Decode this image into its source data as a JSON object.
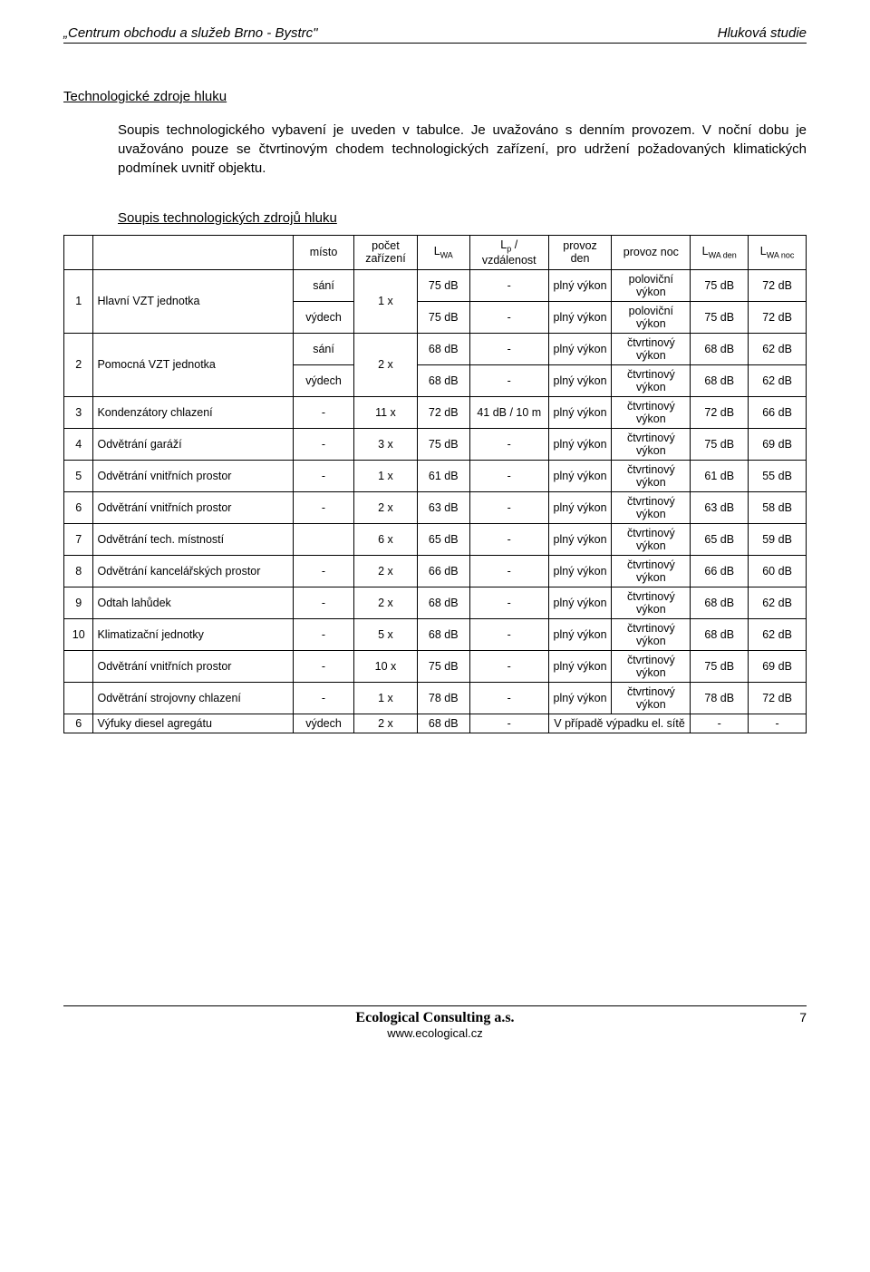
{
  "header": {
    "left": "„Centrum obchodu a služeb Brno - Bystrc\"",
    "right": "Hluková studie"
  },
  "section_title": "Technologické zdroje hluku",
  "para1": "Soupis technologického vybavení je uveden v tabulce. Je uvažováno s denním provozem. V noční dobu je uvažováno pouze se čtvrtinovým chodem technologických zařízení, pro udržení požadovaných klimatických podmínek uvnitř objektu.",
  "sub_title": "Soupis technologických zdrojů hluku",
  "table": {
    "head": {
      "misto": "místo",
      "pocet": "počet zařízení",
      "lwa": "L",
      "lwa_sub": "WA",
      "lp": "L",
      "lp_sub": "p",
      "lp_rest": " / vzdálenost",
      "provoz_den": "provoz den",
      "provoz_noc": "provoz noc",
      "lwa_den": "L",
      "lwa_den_sub": "WA den",
      "lwa_noc": "L",
      "lwa_noc_sub": "WA noc"
    },
    "groups": [
      {
        "n": "1",
        "name": "Hlavní VZT jednotka",
        "cnt": "1 x",
        "rows": [
          {
            "misto": "sání",
            "lwa": "75 dB",
            "lp": "-",
            "pd": "plný výkon",
            "pn": "poloviční výkon",
            "lwd": "75 dB",
            "lwn": "72 dB"
          },
          {
            "misto": "výdech",
            "lwa": "75 dB",
            "lp": "-",
            "pd": "plný výkon",
            "pn": "poloviční výkon",
            "lwd": "75 dB",
            "lwn": "72 dB"
          }
        ]
      },
      {
        "n": "2",
        "name": "Pomocná VZT jednotka",
        "cnt": "2 x",
        "rows": [
          {
            "misto": "sání",
            "lwa": "68 dB",
            "lp": "-",
            "pd": "plný výkon",
            "pn": "čtvrtinový výkon",
            "lwd": "68 dB",
            "lwn": "62 dB"
          },
          {
            "misto": "výdech",
            "lwa": "68 dB",
            "lp": "-",
            "pd": "plný výkon",
            "pn": "čtvrtinový výkon",
            "lwd": "68 dB",
            "lwn": "62 dB"
          }
        ]
      },
      {
        "n": "3",
        "name": "Kondenzátory chlazení",
        "cnt": "11 x",
        "rows": [
          {
            "misto": "-",
            "lwa": "72 dB",
            "lp": "41 dB / 10 m",
            "pd": "plný výkon",
            "pn": "čtvrtinový výkon",
            "lwd": "72 dB",
            "lwn": "66 dB"
          }
        ]
      },
      {
        "n": "4",
        "name": "Odvětrání garáží",
        "cnt": "3 x",
        "rows": [
          {
            "misto": "-",
            "lwa": "75 dB",
            "lp": "-",
            "pd": "plný výkon",
            "pn": "čtvrtinový výkon",
            "lwd": "75 dB",
            "lwn": "69 dB"
          }
        ]
      },
      {
        "n": "5",
        "name": "Odvětrání vnitřních prostor",
        "cnt": "1 x",
        "rows": [
          {
            "misto": "-",
            "lwa": "61 dB",
            "lp": "-",
            "pd": "plný výkon",
            "pn": "čtvrtinový výkon",
            "lwd": "61 dB",
            "lwn": "55 dB"
          }
        ]
      },
      {
        "n": "6",
        "name": "Odvětrání vnitřních prostor",
        "cnt": "2 x",
        "rows": [
          {
            "misto": "-",
            "lwa": "63 dB",
            "lp": "-",
            "pd": "plný výkon",
            "pn": "čtvrtinový výkon",
            "lwd": "63 dB",
            "lwn": "58 dB"
          }
        ]
      },
      {
        "n": "7",
        "name": "Odvětrání tech. místností",
        "cnt": "6 x",
        "rows": [
          {
            "misto": "",
            "lwa": "65 dB",
            "lp": "-",
            "pd": "plný výkon",
            "pn": "čtvrtinový výkon",
            "lwd": "65 dB",
            "lwn": "59 dB"
          }
        ]
      },
      {
        "n": "8",
        "name": "Odvětrání kancelářských prostor",
        "cnt": "2 x",
        "rows": [
          {
            "misto": "-",
            "lwa": "66 dB",
            "lp": "-",
            "pd": "plný výkon",
            "pn": "čtvrtinový výkon",
            "lwd": "66 dB",
            "lwn": "60 dB"
          }
        ]
      },
      {
        "n": "9",
        "name": "Odtah lahůdek",
        "cnt": "2 x",
        "rows": [
          {
            "misto": "-",
            "lwa": "68 dB",
            "lp": "-",
            "pd": "plný výkon",
            "pn": "čtvrtinový výkon",
            "lwd": "68 dB",
            "lwn": "62 dB"
          }
        ]
      },
      {
        "n": "10",
        "name": "Klimatizační jednotky",
        "cnt": "5 x",
        "rows": [
          {
            "misto": "-",
            "lwa": "68 dB",
            "lp": "-",
            "pd": "plný výkon",
            "pn": "čtvrtinový výkon",
            "lwd": "68 dB",
            "lwn": "62 dB"
          }
        ]
      },
      {
        "n": "",
        "name": "Odvětrání vnitřních prostor",
        "cnt": "10 x",
        "rows": [
          {
            "misto": "-",
            "lwa": "75 dB",
            "lp": "-",
            "pd": "plný výkon",
            "pn": "čtvrtinový výkon",
            "lwd": "75 dB",
            "lwn": "69 dB"
          }
        ]
      },
      {
        "n": "",
        "name": "Odvětrání strojovny chlazení",
        "cnt": "1 x",
        "rows": [
          {
            "misto": "-",
            "lwa": "78 dB",
            "lp": "-",
            "pd": "plný výkon",
            "pn": "čtvrtinový výkon",
            "lwd": "78 dB",
            "lwn": "72 dB"
          }
        ]
      },
      {
        "n": "6",
        "name": "Výfuky diesel agregátu",
        "cnt": "2 x",
        "rows": [
          {
            "misto": "výdech",
            "lwa": "68 dB",
            "lp": "-",
            "pd_span": "V případě výpadku el. sítě",
            "lwd": "-",
            "lwn": "-"
          }
        ]
      }
    ]
  },
  "footer": {
    "company": "Ecological Consulting a.s.",
    "web": "www.ecological.cz",
    "page": "7"
  }
}
